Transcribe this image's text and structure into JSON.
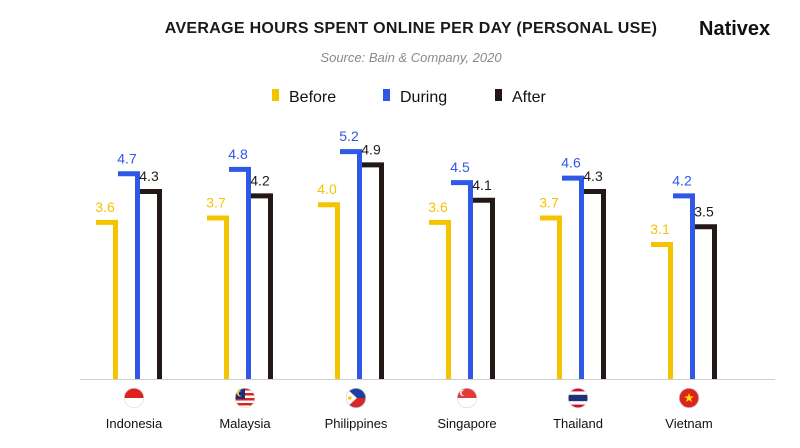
{
  "header": {
    "title": "AVERAGE HOURS SPENT ONLINE PER DAY (PERSONAL USE)",
    "subtitle": "Source: Bain & Company, 2020",
    "brand": "Nativex"
  },
  "chart_data": {
    "type": "bar",
    "title": "AVERAGE HOURS SPENT ONLINE PER DAY (PERSONAL USE)",
    "subtitle": "Source: Bain & Company, 2020",
    "categories": [
      "Indonesia",
      "Malaysia",
      "Philippines",
      "Singapore",
      "Thailand",
      "Vietnam"
    ],
    "series": [
      {
        "name": "Before",
        "color": "#F5C400",
        "values": [
          3.6,
          3.7,
          4.0,
          3.6,
          3.7,
          3.1
        ]
      },
      {
        "name": "During",
        "color": "#2F57E8",
        "values": [
          4.7,
          4.8,
          5.2,
          4.5,
          4.6,
          4.2
        ]
      },
      {
        "name": "After",
        "color": "#231815",
        "values": [
          4.3,
          4.2,
          4.9,
          4.1,
          4.3,
          3.5
        ]
      }
    ],
    "xlabel": "",
    "ylabel": "",
    "ylim": [
      0,
      5.6
    ],
    "grid": false,
    "legend": "top-center",
    "flags": [
      "flag-indonesia",
      "flag-malaysia",
      "flag-philippines",
      "flag-singapore",
      "flag-thailand",
      "flag-vietnam"
    ]
  }
}
